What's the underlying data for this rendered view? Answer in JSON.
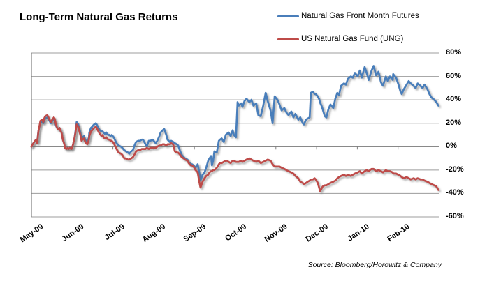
{
  "title": "Long-Term Natural Gas Returns",
  "source": "Source: Bloomberg/Horowitz & Company",
  "legend": [
    {
      "label": "Natural Gas Front Month Futures",
      "color": "#4A7EBA"
    },
    {
      "label": "US Natural Gas Fund (UNG)",
      "color": "#BE4B48"
    }
  ],
  "colors": {
    "futures_line": "#4A7EBA",
    "ung_line": "#BE4B48",
    "gridline": "#9C9C9C",
    "axis": "#7F7F7F",
    "text": "#000000",
    "background": "#FFFFFF"
  },
  "chart_data": {
    "type": "line",
    "title": "Long-Term Natural Gas Returns",
    "xlabel": "",
    "ylabel": "",
    "x_unit": "months since May 2009 (0 = May-09, 1 = Jun-09, ...)",
    "x_tick_labels": [
      "May-09",
      "Jun-09",
      "Jul-09",
      "Aug-09",
      "Sep-09",
      "Oct-09",
      "Nov-09",
      "Dec-09",
      "Jan-10",
      "Feb-10"
    ],
    "x_tick_positions": [
      0,
      1,
      2,
      3,
      4,
      5,
      6,
      7,
      8,
      9
    ],
    "xlim": [
      0,
      10
    ],
    "ylim": [
      -60,
      80
    ],
    "y_ticks": [
      80,
      60,
      40,
      20,
      0,
      -20,
      -40,
      -60
    ],
    "y_tick_suffix": "%",
    "grid": "horizontal",
    "legend_position": "top-right",
    "x": [
      0.0,
      0.03,
      0.09,
      0.12,
      0.14,
      0.17,
      0.21,
      0.22,
      0.26,
      0.29,
      0.31,
      0.34,
      0.39,
      0.43,
      0.46,
      0.48,
      0.51,
      0.55,
      0.57,
      0.6,
      0.63,
      0.65,
      0.69,
      0.72,
      0.74,
      0.77,
      0.81,
      0.82,
      0.86,
      0.89,
      0.91,
      0.94,
      0.98,
      1.0,
      1.03,
      1.06,
      1.08,
      1.11,
      1.15,
      1.17,
      1.2,
      1.23,
      1.25,
      1.29,
      1.32,
      1.34,
      1.37,
      1.41,
      1.42,
      1.46,
      1.49,
      1.51,
      1.54,
      1.58,
      1.6,
      1.63,
      1.66,
      1.68,
      1.72,
      1.75,
      1.77,
      1.8,
      1.84,
      1.85,
      1.89,
      1.92,
      1.94,
      1.97,
      2.02,
      2.06,
      2.09,
      2.14,
      2.2,
      2.23,
      2.28,
      2.32,
      2.37,
      2.4,
      2.45,
      2.49,
      2.54,
      2.57,
      2.62,
      2.66,
      2.71,
      2.74,
      2.8,
      2.83,
      2.88,
      2.92,
      2.97,
      3.0,
      3.05,
      3.09,
      3.14,
      3.17,
      3.22,
      3.26,
      3.31,
      3.34,
      3.4,
      3.43,
      3.48,
      3.52,
      3.57,
      3.6,
      3.65,
      3.69,
      3.74,
      3.77,
      3.83,
      3.86,
      3.91,
      3.94,
      3.98,
      4.03,
      4.08,
      4.12,
      4.15,
      4.2,
      4.25,
      4.29,
      4.34,
      4.37,
      4.41,
      4.43,
      4.46,
      4.49,
      4.55,
      4.6,
      4.63,
      4.67,
      4.72,
      4.77,
      4.8,
      4.84,
      4.89,
      4.94,
      4.97,
      5.02,
      5.06,
      5.09,
      5.15,
      5.18,
      5.23,
      5.28,
      5.35,
      5.4,
      5.45,
      5.52,
      5.57,
      5.63,
      5.69,
      5.75,
      5.8,
      5.87,
      5.92,
      5.97,
      6.04,
      6.09,
      6.14,
      6.21,
      6.26,
      6.31,
      6.38,
      6.43,
      6.48,
      6.55,
      6.6,
      6.66,
      6.69,
      6.74,
      6.78,
      6.83,
      6.86,
      6.91,
      6.95,
      6.98,
      7.03,
      7.07,
      7.08,
      7.12,
      7.15,
      7.2,
      7.24,
      7.29,
      7.34,
      7.41,
      7.46,
      7.51,
      7.55,
      7.6,
      7.67,
      7.72,
      7.77,
      7.84,
      7.89,
      7.94,
      8.01,
      8.06,
      8.11,
      8.18,
      8.23,
      8.28,
      8.35,
      8.4,
      8.46,
      8.52,
      8.58,
      8.63,
      8.7,
      8.75,
      8.8,
      8.87,
      8.88,
      8.95,
      9.01,
      9.06,
      9.09,
      9.14,
      9.21,
      9.26,
      9.31,
      9.38,
      9.43,
      9.48,
      9.55,
      9.6,
      9.65,
      9.72,
      9.77,
      9.82,
      9.89,
      9.94,
      9.99
    ],
    "series": [
      {
        "name": "Natural Gas Front Month Futures",
        "color": "#4A7EBA",
        "values": [
          0,
          2,
          5,
          6,
          4,
          13,
          19,
          21,
          21,
          20,
          22,
          24,
          25,
          23,
          21,
          20,
          22,
          23,
          22,
          18,
          16,
          15,
          16,
          13,
          12,
          6,
          2,
          -1,
          -2,
          -1,
          -2,
          -1,
          -2,
          -1,
          3,
          8,
          13,
          21,
          19,
          16,
          12,
          7,
          8,
          9,
          6,
          5,
          4,
          8,
          12,
          16,
          17,
          18,
          19,
          20,
          19,
          17,
          15,
          14,
          13,
          13,
          12,
          11,
          12,
          11,
          10,
          10,
          9,
          10,
          8,
          5,
          3,
          1,
          0,
          -1,
          -3,
          -4,
          -5,
          -6,
          -4,
          -3,
          2,
          4,
          5,
          5,
          6,
          6,
          2,
          0,
          5,
          5,
          6,
          5,
          3,
          5,
          9,
          12,
          14,
          15,
          10,
          6,
          4,
          5,
          4,
          3,
          2,
          1,
          -4,
          -7,
          -9,
          -10,
          -11,
          -13,
          -15,
          -15,
          -16,
          -18,
          -15,
          -22,
          -29,
          -24,
          -22,
          -18,
          -12,
          -10,
          -8,
          -16,
          -12,
          -4,
          -5,
          5,
          6,
          7,
          4,
          10,
          11,
          12,
          9,
          14,
          10,
          8,
          38,
          35,
          37,
          34,
          39,
          41,
          38,
          40,
          35,
          37,
          27,
          26,
          35,
          46,
          39,
          31,
          20,
          43,
          40,
          36,
          31,
          33,
          29,
          27,
          30,
          25,
          28,
          23,
          25,
          20,
          19,
          23,
          24,
          25,
          46,
          47,
          45,
          45,
          43,
          40,
          38,
          35,
          32,
          26,
          25,
          32,
          36,
          33,
          41,
          46,
          44,
          52,
          54,
          53,
          58,
          60,
          59,
          63,
          60,
          65,
          59,
          68,
          63,
          57,
          65,
          69,
          61,
          64,
          55,
          52,
          60,
          56,
          60,
          57,
          62,
          59,
          53,
          47,
          45,
          49,
          53,
          56,
          54,
          52,
          50,
          54,
          52,
          50,
          53,
          49,
          45,
          42,
          40,
          38,
          35
        ]
      },
      {
        "name": "US Natural Gas Fund (UNG)",
        "color": "#BE4B48",
        "values": [
          0,
          2,
          5,
          6,
          3,
          13,
          20,
          22,
          23,
          21,
          24,
          26,
          27,
          24,
          22,
          21,
          23,
          25,
          24,
          19,
          16,
          15,
          16,
          13,
          12,
          6,
          2,
          -1,
          -2,
          -1,
          -2,
          -1,
          -2,
          -1,
          3,
          8,
          12,
          19,
          17,
          14,
          10,
          5,
          6,
          7,
          4,
          3,
          2,
          6,
          9,
          13,
          14,
          15,
          16,
          17,
          16,
          14,
          12,
          11,
          9,
          10,
          8,
          7,
          8,
          7,
          6,
          6,
          5,
          5,
          3,
          0,
          -2,
          -5,
          -6,
          -7,
          -10,
          -10,
          -11,
          -11,
          -10,
          -9,
          -6,
          -4,
          -3,
          -3,
          -2,
          -2,
          -2,
          -1,
          -2,
          -1,
          -1,
          -1,
          -1,
          0,
          1,
          1,
          2,
          2,
          1,
          2,
          2,
          3,
          2,
          -4,
          -5,
          -5,
          -7,
          -9,
          -10,
          -11,
          -12,
          -14,
          -16,
          -16,
          -17,
          -20,
          -22,
          -30,
          -35,
          -30,
          -27,
          -25,
          -24,
          -22,
          -21,
          -21,
          -20,
          -20,
          -18,
          -15,
          -14,
          -14,
          -13,
          -12,
          -12,
          -13,
          -14,
          -12,
          -12,
          -13,
          -13,
          -13,
          -12,
          -13,
          -12,
          -11,
          -10,
          -11,
          -12,
          -13,
          -12,
          -14,
          -13,
          -12,
          -11,
          -12,
          -15,
          -17,
          -17,
          -17,
          -18,
          -19,
          -20,
          -21,
          -22,
          -23,
          -25,
          -27,
          -30,
          -31,
          -32,
          -31,
          -30,
          -29,
          -28,
          -28,
          -27,
          -28,
          -31,
          -36,
          -38,
          -36,
          -34,
          -33,
          -33,
          -32,
          -31,
          -30,
          -29,
          -27,
          -26,
          -25,
          -24,
          -25,
          -24,
          -25,
          -24,
          -23,
          -22,
          -21,
          -23,
          -21,
          -20,
          -21,
          -19,
          -19,
          -21,
          -20,
          -21,
          -22,
          -20,
          -21,
          -21,
          -22,
          -23,
          -23,
          -24,
          -25,
          -26,
          -27,
          -26,
          -27,
          -28,
          -27,
          -28,
          -27,
          -28,
          -28,
          -29,
          -30,
          -31,
          -32,
          -33,
          -34,
          -37
        ]
      }
    ]
  }
}
